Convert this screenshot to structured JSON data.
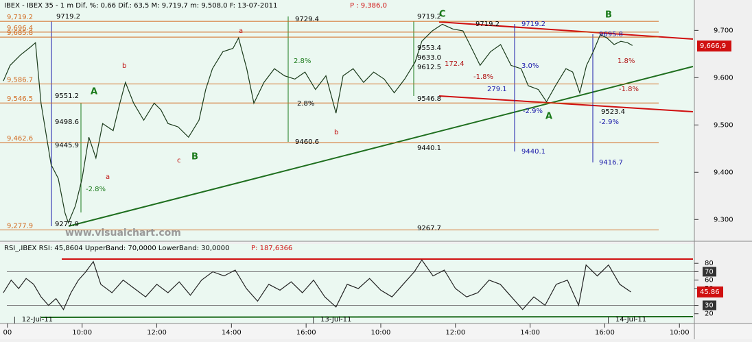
{
  "chart_data": [
    {
      "type": "line",
      "header": "IBEX - IBEX 35 -   1 m Dif, %: 0,66 Dif.: 63,5 M: 9,719,7 m: 9,508,0 F: 13-07-2011",
      "header_price": "P : 9,386,0",
      "x": [
        7.89,
        8.07,
        8.35,
        8.62,
        8.75,
        8.9,
        9.17,
        9.36,
        9.54,
        9.63,
        9.82,
        10,
        10.18,
        10.37,
        10.55,
        10.83,
        11.01,
        11.16,
        11.38,
        11.65,
        11.93,
        12.11,
        12.3,
        12.57,
        12.85,
        13.13,
        13.31,
        13.49,
        13.77,
        14.04,
        14.19,
        14.41,
        14.6,
        14.87,
        15.15,
        15.42,
        15.7,
        15.97,
        16.25,
        16.53,
        16.8,
        16.99,
        17.26,
        17.54,
        17.81,
        18.09,
        18.36,
        18.64,
        18.92,
        19.1,
        19.38,
        19.65,
        19.93,
        20.2,
        20.48,
        20.66,
        20.94,
        21.21,
        21.49,
        21.76,
        21.95,
        22.22,
        22.44,
        22.68,
        22.96,
        23.14,
        23.33,
        23.51,
        23.69,
        23.88,
        24.06,
        24.25,
        24.43,
        24.61,
        24.74
      ],
      "series": [
        {
          "name": "IBEX 35",
          "color": "#1a3a1a",
          "values": [
            9593,
            9626,
            9648,
            9665,
            9674,
            9546,
            9416,
            9387,
            9314,
            9293,
            9329,
            9387,
            9474,
            9430,
            9503,
            9488,
            9546,
            9590,
            9546,
            9510,
            9546,
            9532,
            9503,
            9496,
            9474,
            9510,
            9575,
            9619,
            9655,
            9662,
            9684,
            9619,
            9546,
            9590,
            9619,
            9604,
            9597,
            9612,
            9575,
            9604,
            9525,
            9604,
            9619,
            9590,
            9612,
            9597,
            9568,
            9597,
            9633,
            9677,
            9699,
            9713,
            9703,
            9699,
            9655,
            9626,
            9655,
            9670,
            9626,
            9619,
            9583,
            9575,
            9549,
            9583,
            9619,
            9612,
            9568,
            9626,
            9655,
            9691,
            9684,
            9670,
            9677,
            9674,
            9668
          ]
        }
      ],
      "xlim": [
        7.8,
        26.4
      ],
      "xticks": [
        {
          "value": 8,
          "label": "00"
        },
        {
          "value": 10,
          "label": "10:00"
        },
        {
          "value": 12,
          "label": "12:00"
        },
        {
          "value": 14,
          "label": "14:00"
        },
        {
          "value": 16,
          "label": "16:00"
        },
        {
          "value": 18,
          "label": "10:00"
        },
        {
          "value": 20,
          "label": "12:00"
        },
        {
          "value": 22,
          "label": "14:00"
        },
        {
          "value": 24,
          "label": "16:00"
        },
        {
          "value": 26,
          "label": "10:00"
        }
      ],
      "ylim": [
        9254,
        9744
      ],
      "yticks": [
        {
          "value": 9300,
          "label": "9.300"
        },
        {
          "value": 9400,
          "label": "9.400"
        },
        {
          "value": 9500,
          "label": "9.500"
        },
        {
          "value": 9600,
          "label": "9.600"
        },
        {
          "value": 9700,
          "label": "9.700"
        }
      ],
      "current": {
        "value": 9666.9,
        "label": "9,666,9"
      },
      "levels": [
        {
          "value": 9719.2,
          "label": "9,719.2"
        },
        {
          "value": 9696.4,
          "label": "9,696.4"
        },
        {
          "value": 9685.8,
          "label": "9,685.8"
        },
        {
          "value": 9586.7,
          "label": "9,586.7"
        },
        {
          "value": 9546.5,
          "label": "9,546.5"
        },
        {
          "value": 9462.6,
          "label": "9,462.6"
        },
        {
          "value": 9277.9,
          "label": "9,277.9"
        }
      ],
      "level_color": "#d2691e",
      "annotations": [
        {
          "text": "9719.2",
          "color": "#000000"
        },
        {
          "text": "9551.2",
          "color": "#000000"
        },
        {
          "text": "9498.6",
          "color": "#000000"
        },
        {
          "text": "9445.9",
          "color": "#000000"
        },
        {
          "text": "9277.9",
          "color": "#000000"
        },
        {
          "text": "9729.4",
          "color": "#000000"
        },
        {
          "text": "9460.6",
          "color": "#000000"
        },
        {
          "text": "2.8%",
          "color": "#1a7a1a"
        },
        {
          "text": "2.8%",
          "color": "#000000"
        },
        {
          "text": "9719.2",
          "color": "#000000"
        },
        {
          "text": "9553.4",
          "color": "#000000"
        },
        {
          "text": "9633.0",
          "color": "#000000"
        },
        {
          "text": "9612.5",
          "color": "#000000"
        },
        {
          "text": "9546.8",
          "color": "#000000"
        },
        {
          "text": "9440.1",
          "color": "#000000"
        },
        {
          "text": "9267.7",
          "color": "#000000"
        },
        {
          "text": "9719.2",
          "color": "#000000"
        },
        {
          "text": "9719.2",
          "color": "#1a1aaa"
        },
        {
          "text": "279.1",
          "color": "#1a1aaa"
        },
        {
          "text": "9440.1",
          "color": "#1a1aaa"
        },
        {
          "text": "3.0%",
          "color": "#1a1aaa"
        },
        {
          "text": "-2.9%",
          "color": "#1a1aaa"
        },
        {
          "text": "9695.8",
          "color": "#1a1aaa"
        },
        {
          "text": "9416.7",
          "color": "#1a1aaa"
        },
        {
          "text": "-2.9%",
          "color": "#1a1aaa"
        },
        {
          "text": "9523.4",
          "color": "#000000"
        },
        {
          "text": "1.8%",
          "color": "#b01010"
        },
        {
          "text": "-1.8%",
          "color": "#b01010"
        },
        {
          "text": "-1.8%",
          "color": "#b01010"
        },
        {
          "text": "172.4",
          "color": "#b01010"
        },
        {
          "text": "a",
          "color": "#c01010"
        },
        {
          "text": "b",
          "color": "#c01010"
        },
        {
          "text": "c",
          "color": "#c01010"
        },
        {
          "text": "a",
          "color": "#c01010"
        },
        {
          "text": "b",
          "color": "#c01010"
        },
        {
          "text": "A",
          "color": "#1a7a1a"
        },
        {
          "text": "B",
          "color": "#1a7a1a"
        },
        {
          "text": "C",
          "color": "#1a7a1a"
        },
        {
          "text": "A",
          "color": "#1a7a1a"
        },
        {
          "text": "B",
          "color": "#1a7a1a"
        },
        {
          "text": "-2.8%",
          "color": "#1a7a1a"
        },
        {
          "text": "www.visualchart.com",
          "color": "#9a9a9a"
        }
      ]
    },
    {
      "type": "line",
      "header": "RSI_,IBEX RSI: 45,8604 UpperBand: 70,0000 LowerBand: 30,0000",
      "header_price": "P: 187,6366",
      "x": [
        7.89,
        8.1,
        8.3,
        8.5,
        8.7,
        8.9,
        9.1,
        9.3,
        9.5,
        9.7,
        9.9,
        10.1,
        10.3,
        10.5,
        10.8,
        11.1,
        11.4,
        11.7,
        12,
        12.3,
        12.6,
        12.9,
        13.2,
        13.5,
        13.8,
        14.1,
        14.4,
        14.7,
        15,
        15.3,
        15.6,
        15.9,
        16.2,
        16.5,
        16.8,
        17.1,
        17.4,
        17.7,
        18,
        18.3,
        18.6,
        18.9,
        19.1,
        19.4,
        19.7,
        20,
        20.3,
        20.6,
        20.9,
        21.2,
        21.5,
        21.8,
        22.1,
        22.4,
        22.7,
        23,
        23.3,
        23.5,
        23.8,
        24.1,
        24.4,
        24.7
      ],
      "series": [
        {
          "name": "RSI",
          "color": "#222222",
          "values": [
            45,
            60,
            50,
            62,
            55,
            40,
            30,
            38,
            25,
            45,
            60,
            70,
            82,
            55,
            45,
            60,
            50,
            40,
            55,
            45,
            58,
            42,
            60,
            70,
            65,
            72,
            50,
            35,
            55,
            48,
            58,
            45,
            60,
            40,
            28,
            55,
            50,
            62,
            48,
            40,
            55,
            70,
            84,
            65,
            72,
            50,
            40,
            45,
            60,
            55,
            40,
            25,
            40,
            30,
            55,
            60,
            30,
            78,
            65,
            78,
            55,
            45.86
          ]
        }
      ],
      "xlim": [
        7.8,
        26.4
      ],
      "ylim": [
        10,
        103
      ],
      "yticks": [
        20,
        30,
        50,
        60,
        70,
        80
      ],
      "bands": [
        70,
        30
      ],
      "current": {
        "value": 45.86,
        "label": "45.86"
      },
      "dates": [
        {
          "value": 8.8,
          "label": "12-Jul-11"
        },
        {
          "value": 16.8,
          "label": "13-Jul-11"
        },
        {
          "value": 24.7,
          "label": "14-Jul-11"
        }
      ]
    }
  ]
}
